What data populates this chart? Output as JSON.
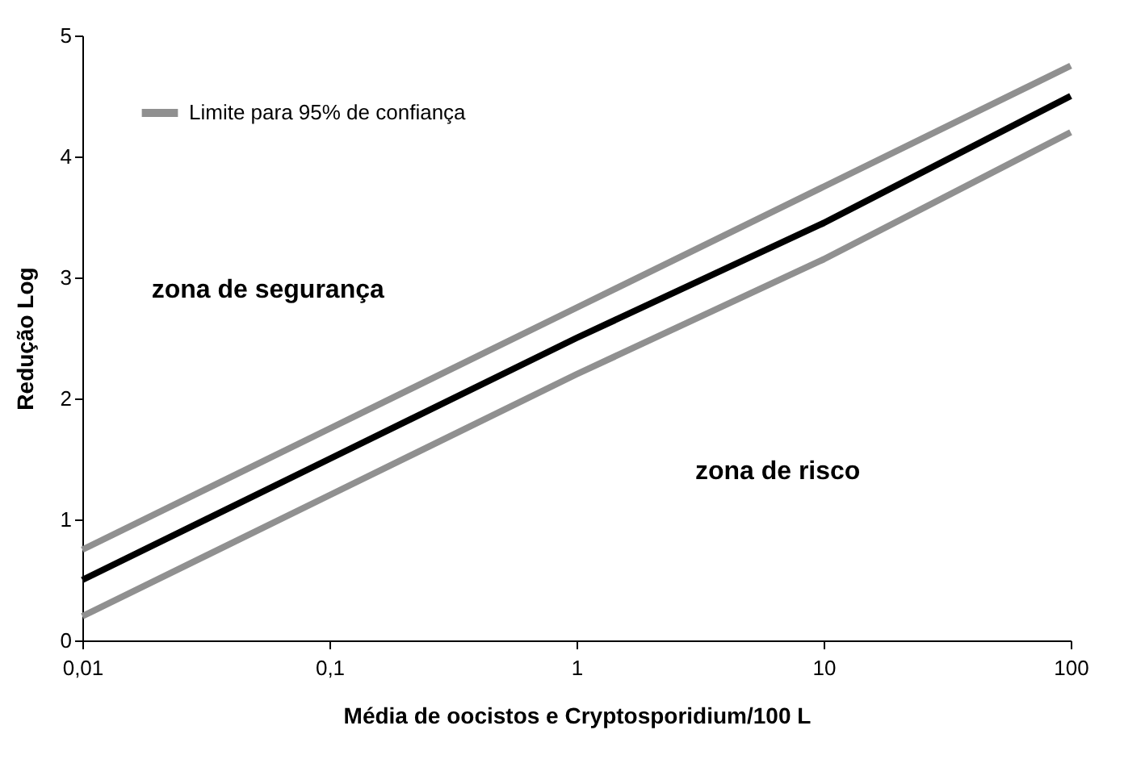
{
  "chart_data": {
    "type": "line",
    "xlabel": "Média de oocistos e Cryptosporidium/100 L",
    "ylabel": "Redução Log",
    "log": "x",
    "x": [
      0.01,
      0.1,
      1,
      10,
      100
    ],
    "series": [
      {
        "name": "Limite para 95% de confiança",
        "color": "#909090",
        "values": [
          0.75,
          1.75,
          2.75,
          3.75,
          4.75
        ]
      },
      {
        "color": "#000000",
        "values": [
          0.5,
          1.5,
          2.5,
          3.45,
          4.5
        ]
      },
      {
        "color": "#909090",
        "values": [
          0.2,
          1.2,
          2.2,
          3.15,
          4.2
        ]
      }
    ],
    "xlim": [
      0.01,
      100
    ],
    "xticks": [
      {
        "value": 0.01,
        "label": "0,01"
      },
      {
        "value": 0.1,
        "label": "0,1"
      },
      1,
      10,
      100
    ],
    "ylim": [
      0,
      5
    ],
    "yticks": [
      0,
      1,
      2,
      3,
      4,
      5
    ],
    "legend": "top left",
    "grid": false,
    "marker": "none",
    "line_style": "solid",
    "annotations": [
      "zona de segurança",
      "zona de risco"
    ]
  }
}
